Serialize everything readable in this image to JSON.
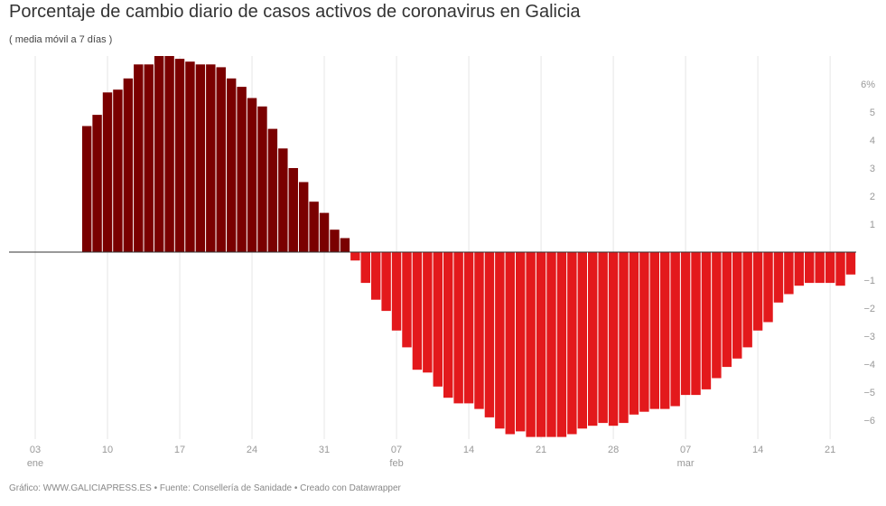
{
  "header": {
    "title": "Porcentaje de cambio diario de casos activos de coronavirus en Galicia",
    "subtitle": "( media móvil a 7 días )"
  },
  "footer": {
    "text": "Gráfico: WWW.GALICIAPRESS.ES • Fuente: Consellería de Sanidade • Creado con Datawrapper"
  },
  "colors": {
    "positive": "#7a0000",
    "negative": "#e3191c",
    "grid": "#e6e6e6",
    "zero_line": "#333333"
  },
  "chart_data": {
    "type": "bar",
    "title": "Porcentaje de cambio diario de casos activos de coronavirus en Galicia",
    "subtitle": "( media móvil a 7 días )",
    "xlabel": "",
    "ylabel": "",
    "ylim": [
      -7,
      7
    ],
    "grid": "vertical",
    "y_axis_position": "right",
    "y_ticks": [
      "6%",
      "5",
      "4",
      "3",
      "2",
      "1",
      "−1",
      "−2",
      "−3",
      "−4",
      "−5",
      "−6"
    ],
    "y_tick_values": [
      6,
      5,
      4,
      3,
      2,
      1,
      -1,
      -2,
      -3,
      -4,
      -5,
      -6
    ],
    "x_ticks": [
      {
        "day": "03",
        "month": "ene"
      },
      {
        "day": "10",
        "month": ""
      },
      {
        "day": "17",
        "month": ""
      },
      {
        "day": "24",
        "month": ""
      },
      {
        "day": "31",
        "month": ""
      },
      {
        "day": "07",
        "month": "feb"
      },
      {
        "day": "14",
        "month": ""
      },
      {
        "day": "21",
        "month": ""
      },
      {
        "day": "28",
        "month": ""
      },
      {
        "day": "07",
        "month": "mar"
      },
      {
        "day": "14",
        "month": ""
      },
      {
        "day": "21",
        "month": ""
      }
    ],
    "x_tick_dates": [
      "03 ene",
      "10 ene",
      "17 ene",
      "24 ene",
      "31 ene",
      "07 feb",
      "14 feb",
      "21 feb",
      "28 feb",
      "07 mar",
      "14 mar",
      "21 mar"
    ],
    "categories": [
      "08 ene",
      "09 ene",
      "10 ene",
      "11 ene",
      "12 ene",
      "13 ene",
      "14 ene",
      "15 ene",
      "16 ene",
      "17 ene",
      "18 ene",
      "19 ene",
      "20 ene",
      "21 ene",
      "22 ene",
      "23 ene",
      "24 ene",
      "25 ene",
      "26 ene",
      "27 ene",
      "28 ene",
      "29 ene",
      "30 ene",
      "31 ene",
      "01 feb",
      "02 feb",
      "03 feb",
      "04 feb",
      "05 feb",
      "06 feb",
      "07 feb",
      "08 feb",
      "09 feb",
      "10 feb",
      "11 feb",
      "12 feb",
      "13 feb",
      "14 feb",
      "15 feb",
      "16 feb",
      "17 feb",
      "18 feb",
      "19 feb",
      "20 feb",
      "21 feb",
      "22 feb",
      "23 feb",
      "24 feb",
      "25 feb",
      "26 feb",
      "27 feb",
      "28 feb",
      "01 mar",
      "02 mar",
      "03 mar",
      "04 mar",
      "05 mar",
      "06 mar",
      "07 mar",
      "08 mar",
      "09 mar",
      "10 mar",
      "11 mar",
      "12 mar",
      "13 mar",
      "14 mar",
      "15 mar",
      "16 mar",
      "17 mar",
      "18 mar",
      "19 mar",
      "20 mar",
      "21 mar",
      "22 mar",
      "23 mar"
    ],
    "values": [
      4.5,
      4.9,
      5.7,
      5.8,
      6.2,
      6.7,
      6.7,
      7.0,
      7.0,
      6.9,
      6.8,
      6.7,
      6.7,
      6.6,
      6.2,
      5.9,
      5.5,
      5.2,
      4.4,
      3.7,
      3.0,
      2.5,
      1.8,
      1.4,
      0.8,
      0.5,
      -0.3,
      -1.1,
      -1.7,
      -2.1,
      -2.8,
      -3.4,
      -4.2,
      -4.3,
      -4.8,
      -5.2,
      -5.4,
      -5.4,
      -5.6,
      -5.9,
      -6.3,
      -6.5,
      -6.4,
      -6.6,
      -6.6,
      -6.6,
      -6.6,
      -6.5,
      -6.3,
      -6.2,
      -6.1,
      -6.2,
      -6.1,
      -5.8,
      -5.7,
      -5.6,
      -5.6,
      -5.5,
      -5.1,
      -5.1,
      -4.9,
      -4.5,
      -4.1,
      -3.8,
      -3.4,
      -2.8,
      -2.5,
      -1.8,
      -1.5,
      -1.2,
      -1.1,
      -1.1,
      -1.1,
      -1.2,
      -0.8
    ]
  }
}
